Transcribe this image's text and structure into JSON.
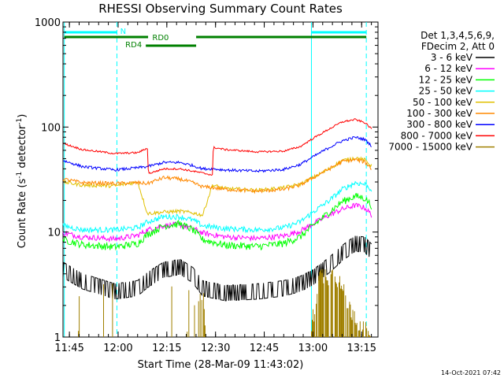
{
  "chart_data": {
    "type": "line",
    "title": "RHESSI Observing Summary Count Rates",
    "xlabel": "Start Time (28-Mar-09 11:43:02)",
    "ylabel_parts": [
      "Count Rate (s",
      "-1",
      " detector",
      "-1",
      ")"
    ],
    "x_range_minutes": [
      0,
      97
    ],
    "y_range": [
      1,
      1000
    ],
    "y_scale": "log",
    "y_ticks": [
      {
        "v": 1,
        "label": "1"
      },
      {
        "v": 10,
        "label": "10"
      },
      {
        "v": 100,
        "label": "100"
      },
      {
        "v": 1000,
        "label": "1000"
      }
    ],
    "x_ticks": [
      {
        "t": 1.97,
        "label": "11:45"
      },
      {
        "t": 16.97,
        "label": "12:00"
      },
      {
        "t": 31.97,
        "label": "12:15"
      },
      {
        "t": 46.97,
        "label": "12:30"
      },
      {
        "t": 61.97,
        "label": "12:45"
      },
      {
        "t": 76.97,
        "label": "13:00"
      },
      {
        "t": 91.97,
        "label": "13:15"
      }
    ],
    "legend_header": [
      "Det 1,3,4,5,6,9,",
      "FDecim 2, Att 0"
    ],
    "legend_placement": "top-right, outside plot",
    "series": [
      {
        "name": "3 - 6 keV",
        "color": "#000000",
        "points": [
          [
            0,
            4.5
          ],
          [
            6,
            3.5
          ],
          [
            16,
            2.8
          ],
          [
            23,
            3.0
          ],
          [
            26,
            3.6
          ],
          [
            31,
            4.5
          ],
          [
            36,
            4.8
          ],
          [
            40,
            4.0
          ],
          [
            43,
            3.0
          ],
          [
            50,
            2.7
          ],
          [
            60,
            2.8
          ],
          [
            68,
            3.0
          ],
          [
            73,
            3.3
          ],
          [
            77,
            3.8
          ],
          [
            82,
            5.0
          ],
          [
            86,
            6.5
          ],
          [
            90,
            8.0
          ],
          [
            93,
            7.8
          ],
          [
            96,
            6.2
          ]
        ]
      },
      {
        "name": "6 - 12 keV",
        "color": "#ff00ff",
        "points": [
          [
            0,
            9.8
          ],
          [
            6,
            9.0
          ],
          [
            16,
            8.6
          ],
          [
            23,
            9.3
          ],
          [
            26,
            10.5
          ],
          [
            31,
            11.5
          ],
          [
            36,
            11.8
          ],
          [
            40,
            10.8
          ],
          [
            43,
            9.8
          ],
          [
            50,
            9.0
          ],
          [
            60,
            8.7
          ],
          [
            68,
            9.2
          ],
          [
            73,
            10.2
          ],
          [
            77,
            12.0
          ],
          [
            82,
            14.5
          ],
          [
            86,
            16.5
          ],
          [
            90,
            18.0
          ],
          [
            93,
            17.0
          ],
          [
            96,
            13.5
          ]
        ]
      },
      {
        "name": "12 - 25 keV",
        "color": "#00ff00",
        "points": [
          [
            0,
            8.5
          ],
          [
            6,
            7.6
          ],
          [
            16,
            7.2
          ],
          [
            23,
            7.8
          ],
          [
            26,
            9.5
          ],
          [
            31,
            11.5
          ],
          [
            36,
            12.0
          ],
          [
            40,
            10.5
          ],
          [
            43,
            8.5
          ],
          [
            50,
            7.5
          ],
          [
            60,
            7.3
          ],
          [
            68,
            7.8
          ],
          [
            73,
            9.0
          ],
          [
            77,
            11.5
          ],
          [
            82,
            15.5
          ],
          [
            86,
            19.5
          ],
          [
            90,
            22.0
          ],
          [
            93,
            21.0
          ],
          [
            96,
            16.5
          ]
        ]
      },
      {
        "name": "25 - 50 keV",
        "color": "#00ffff",
        "points": [
          [
            0,
            11.5
          ],
          [
            6,
            10.5
          ],
          [
            16,
            10.5
          ],
          [
            23,
            11.0
          ],
          [
            26,
            12.5
          ],
          [
            31,
            14.0
          ],
          [
            36,
            14.0
          ],
          [
            40,
            13.0
          ],
          [
            43,
            11.5
          ],
          [
            50,
            10.8
          ],
          [
            60,
            10.5
          ],
          [
            68,
            11.0
          ],
          [
            73,
            12.5
          ],
          [
            77,
            15.5
          ],
          [
            82,
            20.0
          ],
          [
            86,
            25.5
          ],
          [
            90,
            29.5
          ],
          [
            93,
            28.5
          ],
          [
            96,
            24.0
          ]
        ]
      },
      {
        "name": "50 - 100 keV",
        "color": "#e0c000",
        "points": [
          [
            0,
            30
          ],
          [
            6,
            28
          ],
          [
            16,
            27.5
          ],
          [
            23,
            30
          ],
          [
            26,
            15
          ],
          [
            31,
            15.5
          ],
          [
            36,
            15.8
          ],
          [
            40,
            15.2
          ],
          [
            43,
            14.5
          ],
          [
            46,
            28
          ],
          [
            50,
            26
          ],
          [
            60,
            25
          ],
          [
            68,
            26.5
          ],
          [
            73,
            28.5
          ],
          [
            77,
            33
          ],
          [
            82,
            40
          ],
          [
            86,
            48
          ],
          [
            90,
            51
          ],
          [
            93,
            48.5
          ],
          [
            96,
            40
          ]
        ]
      },
      {
        "name": "100 - 300 keV",
        "color": "#ff8800",
        "points": [
          [
            0,
            32
          ],
          [
            6,
            29.5
          ],
          [
            16,
            29
          ],
          [
            23,
            29.5
          ],
          [
            26,
            29
          ],
          [
            31,
            33
          ],
          [
            36,
            32
          ],
          [
            40,
            29.5
          ],
          [
            43,
            27
          ],
          [
            46,
            26.5
          ],
          [
            50,
            25.5
          ],
          [
            60,
            24.5
          ],
          [
            68,
            25.5
          ],
          [
            73,
            28
          ],
          [
            77,
            33
          ],
          [
            82,
            40
          ],
          [
            86,
            47
          ],
          [
            90,
            49
          ],
          [
            93,
            46.5
          ],
          [
            96,
            37
          ]
        ]
      },
      {
        "name": "300 - 800 keV",
        "color": "#0000ff",
        "points": [
          [
            0,
            48
          ],
          [
            6,
            42
          ],
          [
            16,
            39
          ],
          [
            23,
            41
          ],
          [
            26,
            42
          ],
          [
            31,
            46
          ],
          [
            36,
            46
          ],
          [
            40,
            43
          ],
          [
            43,
            40
          ],
          [
            46,
            40
          ],
          [
            50,
            39
          ],
          [
            60,
            38
          ],
          [
            68,
            39.5
          ],
          [
            73,
            44
          ],
          [
            77,
            52
          ],
          [
            82,
            64
          ],
          [
            86,
            74
          ],
          [
            90,
            80
          ],
          [
            93,
            76
          ],
          [
            96,
            62
          ]
        ]
      },
      {
        "name": "800 - 7000 keV",
        "color": "#ff0000",
        "points": [
          [
            0,
            70
          ],
          [
            6,
            61
          ],
          [
            16,
            56
          ],
          [
            23,
            57
          ],
          [
            26,
            63
          ],
          [
            26.3,
            36
          ],
          [
            31,
            40
          ],
          [
            36,
            40
          ],
          [
            40,
            38
          ],
          [
            46,
            35
          ],
          [
            46.3,
            64
          ],
          [
            50,
            61
          ],
          [
            60,
            58
          ],
          [
            68,
            59
          ],
          [
            73,
            65
          ],
          [
            77,
            78
          ],
          [
            82,
            96
          ],
          [
            86,
            112
          ],
          [
            90,
            118
          ],
          [
            93,
            110
          ],
          [
            96,
            90
          ]
        ]
      },
      {
        "name": "7000 - 15000 keV",
        "color": "#a08000",
        "points": [
          [
            0,
            1
          ],
          [
            76,
            1
          ],
          [
            77,
            1.5
          ],
          [
            79,
            3.8
          ],
          [
            84,
            3.9
          ],
          [
            88,
            2.0
          ],
          [
            92,
            1.2
          ],
          [
            95,
            1
          ]
        ]
      }
    ],
    "states": [
      {
        "label": "N",
        "color": "#00ffff"
      },
      {
        "label": "RD0",
        "color": "#008000"
      },
      {
        "label": "RD4",
        "color": "#008000"
      }
    ],
    "vertical_markers": {
      "color": "#00ffff"
    },
    "footer_timestamp": "14-Oct-2021 07:42"
  }
}
